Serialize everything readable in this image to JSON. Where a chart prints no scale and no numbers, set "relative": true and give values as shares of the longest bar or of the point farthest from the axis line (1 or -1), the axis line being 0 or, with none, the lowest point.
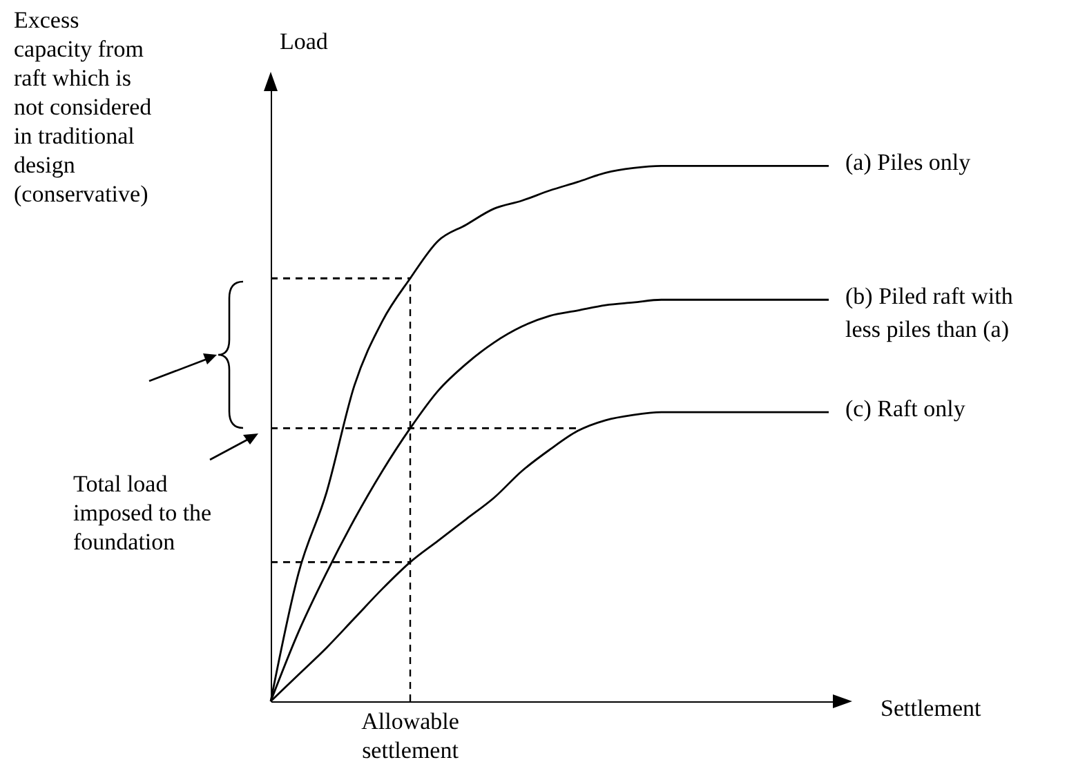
{
  "chart_data": {
    "type": "line",
    "relative": true,
    "xlabel": "Settlement",
    "ylabel": "Load",
    "line_style": "solid",
    "categories": [
      null,
      null,
      null,
      null,
      null,
      null,
      null,
      null,
      null,
      null,
      null,
      null,
      null,
      null,
      null,
      null,
      null,
      null,
      null,
      null,
      null
    ],
    "series": [
      {
        "name": "(a) Piles only",
        "color": "#000000",
        "values": [
          0,
          0.24,
          0.39,
          0.59,
          0.71,
          0.79,
          0.86,
          0.89,
          0.92,
          0.935,
          0.954,
          0.97,
          0.987,
          0.996,
          1,
          1,
          1,
          1,
          1,
          1,
          1
        ]
      },
      {
        "name": "(b) Piled raft with less piles than (a)",
        "color": "#000000",
        "values": [
          0,
          0.13,
          0.24,
          0.34,
          0.43,
          0.51,
          0.58,
          0.63,
          0.67,
          0.7,
          0.72,
          0.73,
          0.74,
          0.745,
          0.75,
          0.75,
          0.75,
          0.75,
          0.75,
          0.75,
          0.75
        ]
      },
      {
        "name": "(c) Raft only",
        "color": "#000000",
        "values": [
          0,
          0.05,
          0.1,
          0.155,
          0.21,
          0.26,
          0.3,
          0.34,
          0.38,
          0.43,
          0.47,
          0.505,
          0.525,
          0.535,
          0.54,
          0.54,
          0.54,
          0.54,
          0.54,
          0.54,
          0.54
        ]
      },
      {
        "type": "line",
        "line_style": "dashed",
        "color": "#000000",
        "values": [
          0.79,
          0.79,
          0.79,
          0.79,
          0.79,
          0.79,
          null,
          null,
          null,
          null,
          null,
          null,
          null,
          null,
          null,
          null,
          null,
          null,
          null,
          null,
          null
        ]
      },
      {
        "type": "line",
        "line_style": "dashed",
        "color": "#000000",
        "values": [
          0.51,
          0.51,
          0.51,
          0.51,
          0.51,
          0.51,
          0.51,
          0.51,
          0.51,
          0.51,
          0.51,
          0.51,
          null,
          null,
          null,
          null,
          null,
          null,
          null,
          null,
          null
        ]
      },
      {
        "type": "line",
        "line_style": "dashed",
        "color": "#000000",
        "values": [
          0.26,
          0.26,
          0.26,
          0.26,
          0.26,
          0.26,
          null,
          null,
          null,
          null,
          null,
          null,
          null,
          null,
          null,
          null,
          null,
          null,
          null,
          null,
          null
        ]
      }
    ],
    "annotations": [
      "Excess capacity from raft which is not considered in traditional design (conservative)",
      "Total load imposed to the foundation",
      "Allowable settlement"
    ]
  }
}
